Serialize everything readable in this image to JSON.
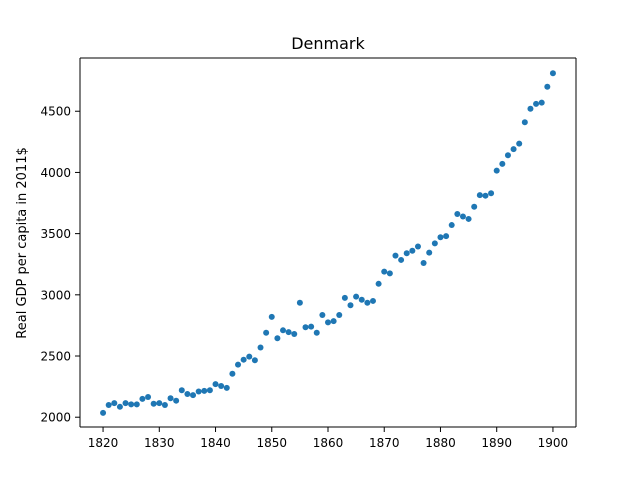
{
  "chart_data": {
    "type": "scatter",
    "title": "Denmark",
    "xlabel": "",
    "ylabel": "Real GDP per capita in 2011$",
    "xlim": [
      1815.9,
      1904.1
    ],
    "ylim": [
      1920,
      4935
    ],
    "x_ticks": [
      1820,
      1830,
      1840,
      1850,
      1860,
      1870,
      1880,
      1890,
      1900
    ],
    "y_ticks": [
      2000,
      2500,
      3000,
      3500,
      4000,
      4500
    ],
    "grid": false,
    "marker_color": "#1f77b4",
    "x": [
      1820,
      1821,
      1822,
      1823,
      1824,
      1825,
      1826,
      1827,
      1828,
      1829,
      1830,
      1831,
      1832,
      1833,
      1834,
      1835,
      1836,
      1837,
      1838,
      1839,
      1840,
      1841,
      1842,
      1843,
      1844,
      1845,
      1846,
      1847,
      1848,
      1849,
      1850,
      1851,
      1852,
      1853,
      1854,
      1855,
      1856,
      1857,
      1858,
      1859,
      1860,
      1861,
      1862,
      1863,
      1864,
      1865,
      1866,
      1867,
      1868,
      1869,
      1870,
      1871,
      1872,
      1873,
      1874,
      1875,
      1876,
      1877,
      1878,
      1879,
      1880,
      1881,
      1882,
      1883,
      1884,
      1885,
      1886,
      1887,
      1888,
      1889,
      1890,
      1891,
      1892,
      1893,
      1894,
      1895,
      1896,
      1897,
      1898,
      1899,
      1900
    ],
    "y": [
      2035,
      2100,
      2115,
      2085,
      2115,
      2105,
      2105,
      2150,
      2165,
      2110,
      2115,
      2100,
      2155,
      2135,
      2220,
      2190,
      2180,
      2210,
      2215,
      2220,
      2270,
      2255,
      2240,
      2355,
      2430,
      2470,
      2495,
      2465,
      2570,
      2690,
      2820,
      2645,
      2710,
      2695,
      2680,
      2935,
      2735,
      2740,
      2690,
      2835,
      2775,
      2785,
      2835,
      2975,
      2915,
      2985,
      2960,
      2935,
      2950,
      3090,
      3190,
      3175,
      3320,
      3285,
      3340,
      3360,
      3395,
      3260,
      3345,
      3420,
      3470,
      3480,
      3570,
      3660,
      3640,
      3620,
      3720,
      3815,
      3810,
      3830,
      4015,
      4070,
      4140,
      4190,
      4235,
      4410,
      4520,
      4560,
      4570,
      4700,
      4810
    ]
  }
}
